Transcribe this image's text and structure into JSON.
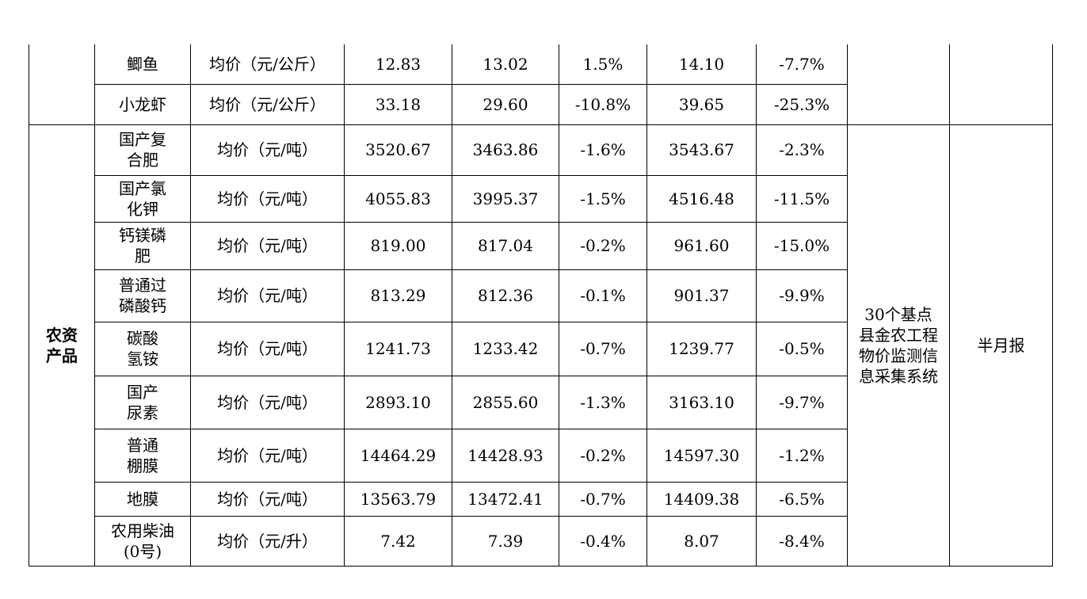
{
  "table": {
    "top_rows": [
      {
        "name": "鲫鱼",
        "unit": "均价（元/公斤）",
        "v1": "12.83",
        "v2": "13.02",
        "v3": "1.5%",
        "v4": "14.10",
        "v5": "-7.7%"
      },
      {
        "name": "小龙虾",
        "unit": "均价（元/公斤）",
        "v1": "33.18",
        "v2": "29.60",
        "v3": "-10.8%",
        "v4": "39.65",
        "v5": "-25.3%"
      }
    ],
    "group": {
      "category": "农资产品",
      "source": "30个基点县金农工程物价监测信息采集系统",
      "frequency": "半月报",
      "rows": [
        {
          "name": "国产复合肥",
          "unit": "均价（元/吨）",
          "v1": "3520.67",
          "v2": "3463.86",
          "v3": "-1.6%",
          "v4": "3543.67",
          "v5": "-2.3%"
        },
        {
          "name": "国产氯化钾",
          "unit": "均价（元/吨）",
          "v1": "4055.83",
          "v2": "3995.37",
          "v3": "-1.5%",
          "v4": "4516.48",
          "v5": "-11.5%"
        },
        {
          "name": "钙镁磷肥",
          "unit": "均价（元/吨）",
          "v1": "819.00",
          "v2": "817.04",
          "v3": "-0.2%",
          "v4": "961.60",
          "v5": "-15.0%"
        },
        {
          "name": "普通过磷酸钙",
          "unit": "均价（元/吨）",
          "v1": "813.29",
          "v2": "812.36",
          "v3": "-0.1%",
          "v4": "901.37",
          "v5": "-9.9%"
        },
        {
          "name": "碳酸氢铵",
          "unit": "均价（元/吨）",
          "v1": "1241.73",
          "v2": "1233.42",
          "v3": "-0.7%",
          "v4": "1239.77",
          "v5": "-0.5%"
        },
        {
          "name": "国产尿素",
          "unit": "均价（元/吨）",
          "v1": "2893.10",
          "v2": "2855.60",
          "v3": "-1.3%",
          "v4": "3163.10",
          "v5": "-9.7%"
        },
        {
          "name": "普通棚膜",
          "unit": "均价（元/吨）",
          "v1": "14464.29",
          "v2": "14428.93",
          "v3": "-0.2%",
          "v4": "14597.30",
          "v5": "-1.2%"
        },
        {
          "name": "地膜",
          "unit": "均价（元/吨）",
          "v1": "13563.79",
          "v2": "13472.41",
          "v3": "-0.7%",
          "v4": "14409.38",
          "v5": "-6.5%"
        },
        {
          "name": "农用柴油(0号)",
          "unit": "均价（元/升）",
          "v1": "7.42",
          "v2": "7.39",
          "v3": "-0.4%",
          "v4": "8.07",
          "v5": "-8.4%"
        }
      ]
    }
  }
}
